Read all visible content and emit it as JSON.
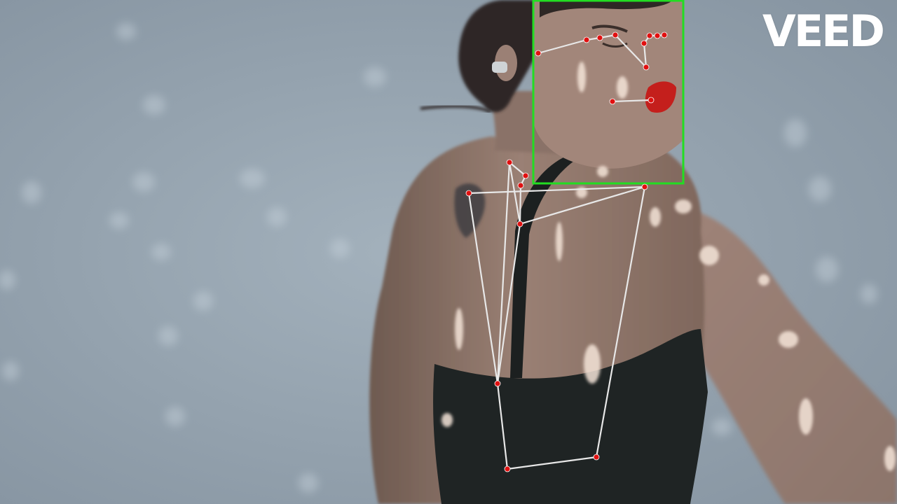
{
  "watermark": {
    "text": "VEED",
    "color": "#ffffff"
  },
  "scene": {
    "subject": "woman-from-behind-turning-head",
    "background": "grey-blue-wall-with-light-spots"
  },
  "overlay": {
    "face_box_color": "#22dd22",
    "skeleton_line_color": "#e8e8e8",
    "keypoint_color": "#e01010",
    "keypoint_count": 20
  }
}
